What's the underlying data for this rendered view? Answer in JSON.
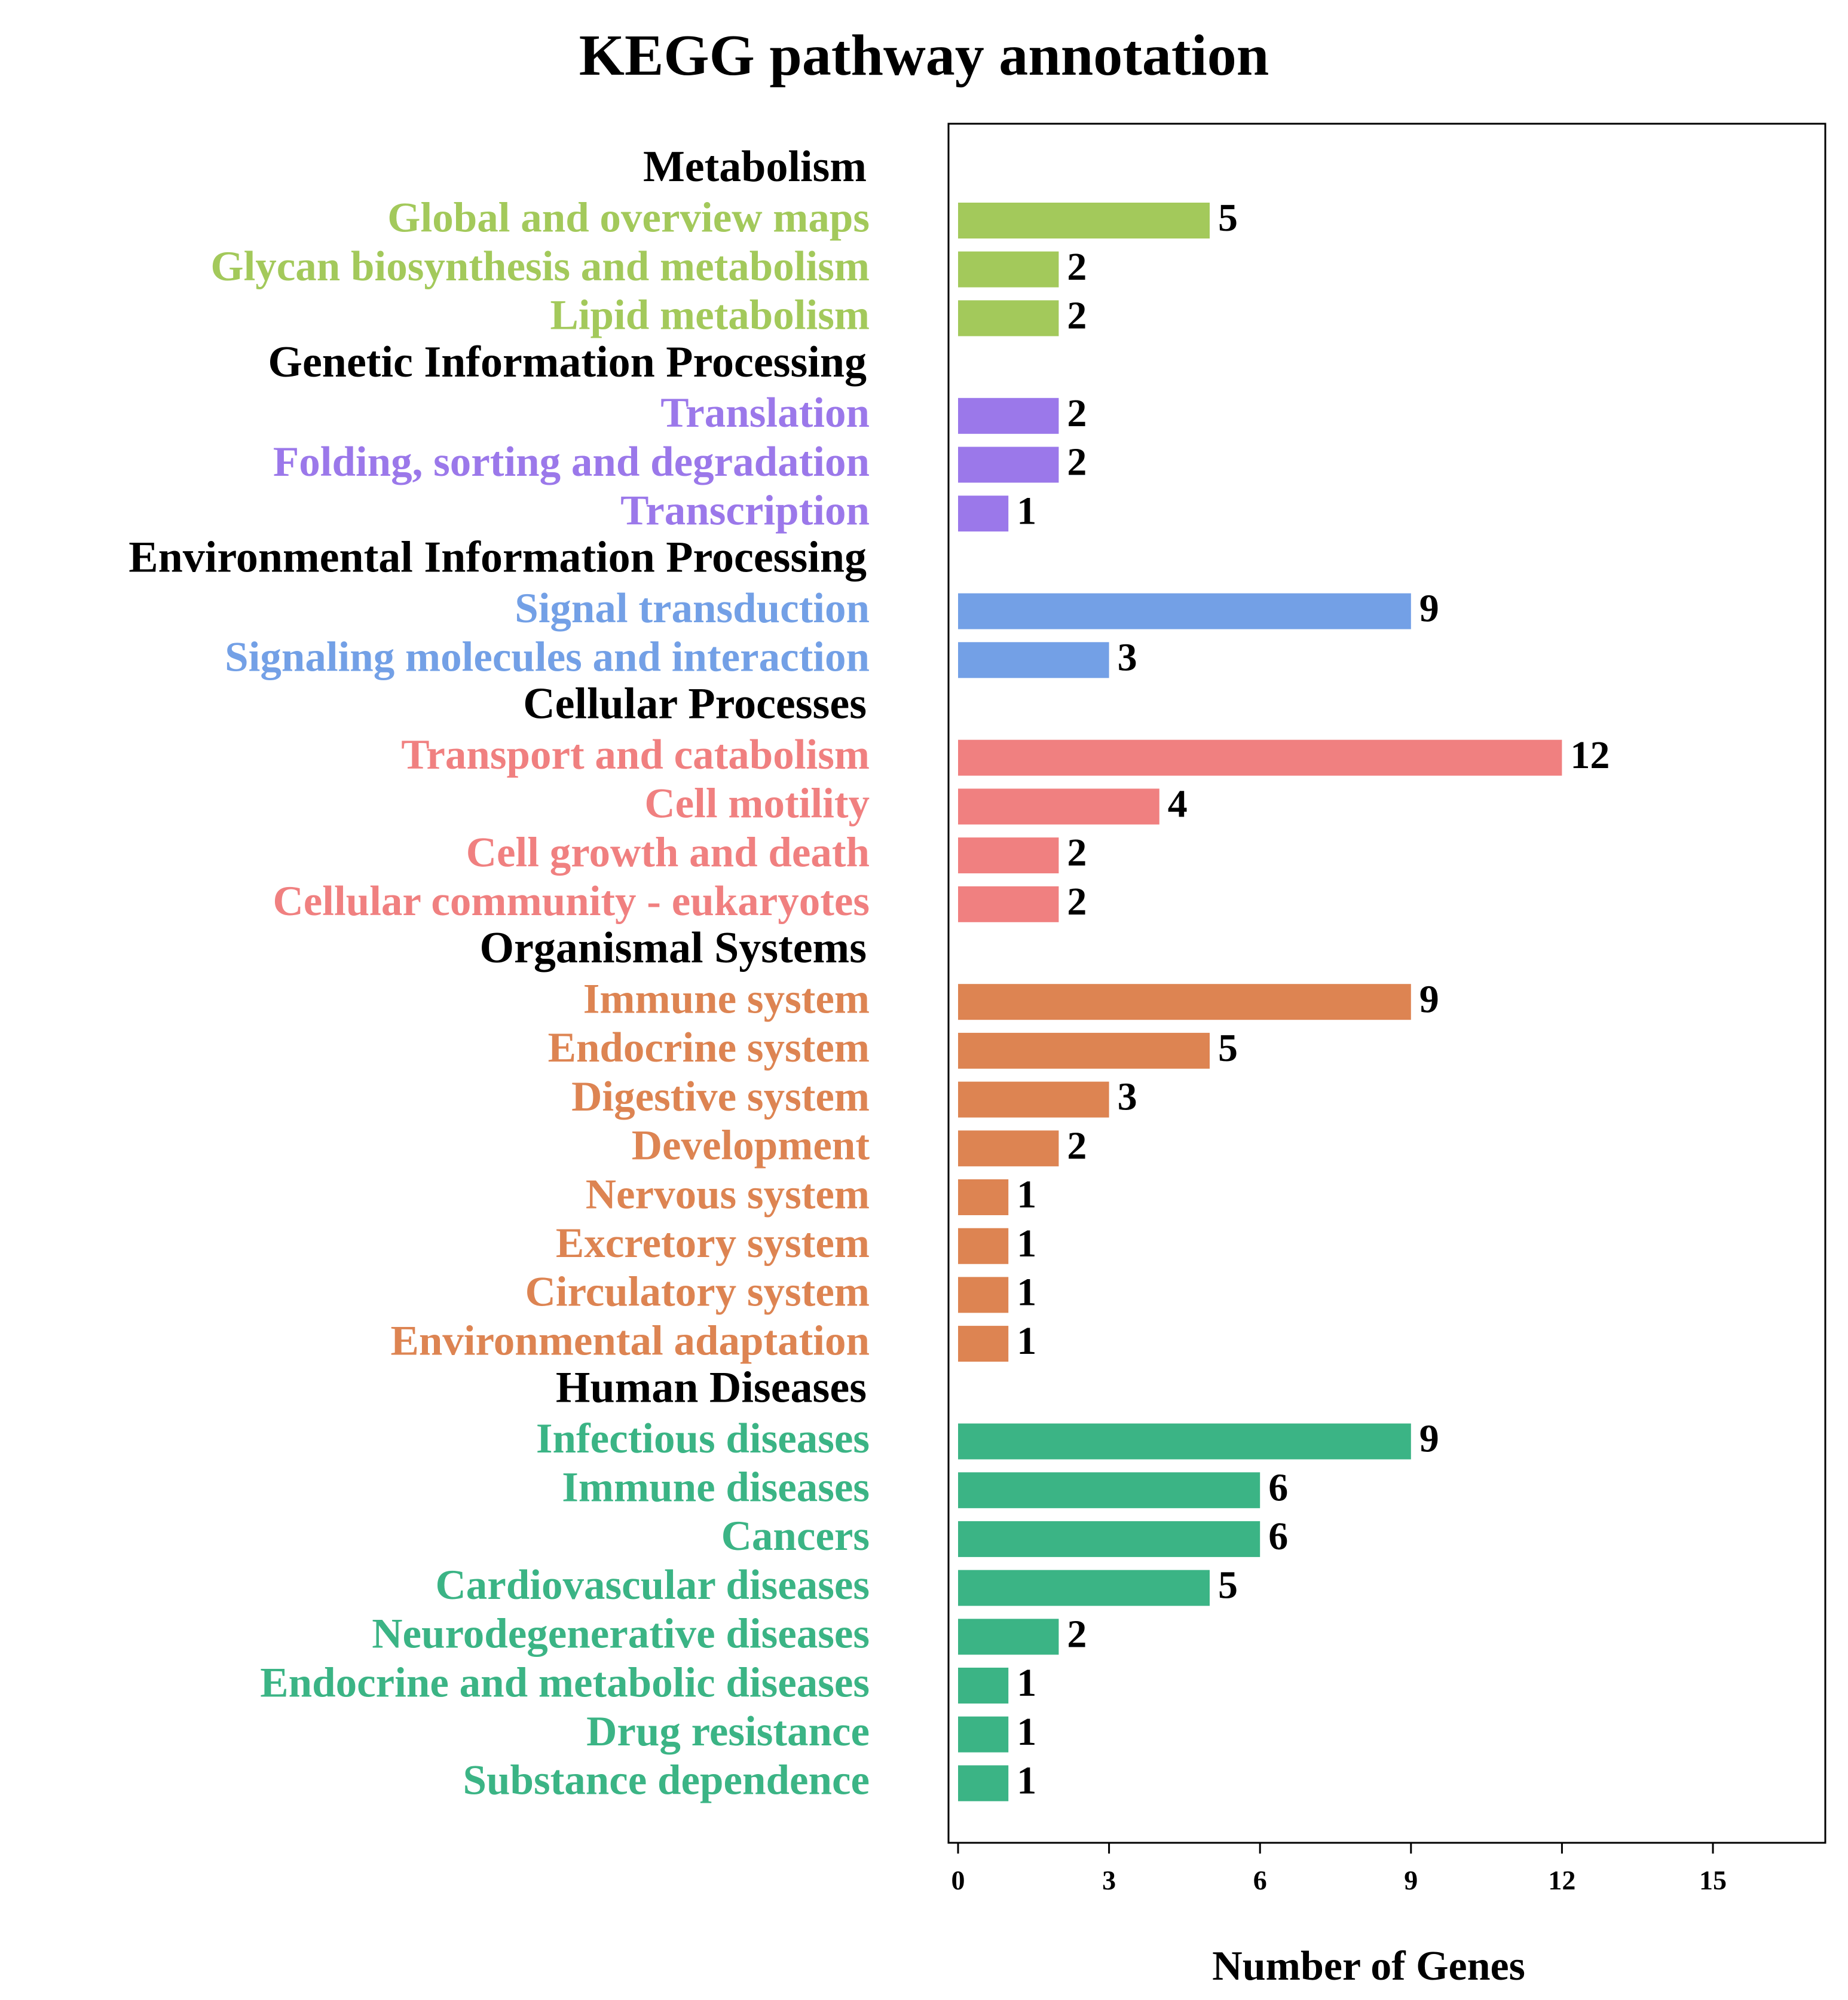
{
  "chart_data": {
    "type": "bar",
    "orientation": "horizontal",
    "title": "KEGG pathway annotation",
    "xlabel": "Number of Genes",
    "ylabel": "",
    "xlim": [
      0,
      17.5
    ],
    "xticks": [
      0,
      3,
      6,
      9,
      12,
      15
    ],
    "grid": false,
    "groups": [
      {
        "name": "Metabolism",
        "color": "#a3c95b",
        "categories": [
          "Global and overview maps",
          "Glycan biosynthesis and metabolism",
          "Lipid metabolism"
        ],
        "values": [
          5,
          2,
          2
        ]
      },
      {
        "name": "Genetic Information Processing",
        "color": "#9b78ea",
        "categories": [
          "Translation",
          "Folding, sorting and degradation",
          "Transcription"
        ],
        "values": [
          2,
          2,
          1
        ]
      },
      {
        "name": "Environmental Information Processing",
        "color": "#73a0e6",
        "categories": [
          "Signal transduction",
          "Signaling molecules and interaction"
        ],
        "values": [
          9,
          3
        ]
      },
      {
        "name": "Cellular Processes",
        "color": "#f08080",
        "categories": [
          "Transport and catabolism",
          "Cell motility",
          "Cell growth and death",
          "Cellular community - eukaryotes"
        ],
        "values": [
          12,
          4,
          2,
          2
        ]
      },
      {
        "name": "Organismal Systems",
        "color": "#dd8452",
        "categories": [
          "Immune system",
          "Endocrine system",
          "Digestive system",
          "Development",
          "Nervous system",
          "Excretory system",
          "Circulatory system",
          "Environmental adaptation"
        ],
        "values": [
          9,
          5,
          3,
          2,
          1,
          1,
          1,
          1
        ]
      },
      {
        "name": "Human Diseases",
        "color": "#3bb485",
        "categories": [
          "Infectious diseases",
          "Immune diseases",
          "Cancers",
          "Cardiovascular diseases",
          "Neurodegenerative diseases",
          "Endocrine and metabolic diseases",
          "Drug resistance",
          "Substance dependence"
        ],
        "values": [
          9,
          6,
          6,
          5,
          2,
          1,
          1,
          1
        ]
      }
    ]
  }
}
